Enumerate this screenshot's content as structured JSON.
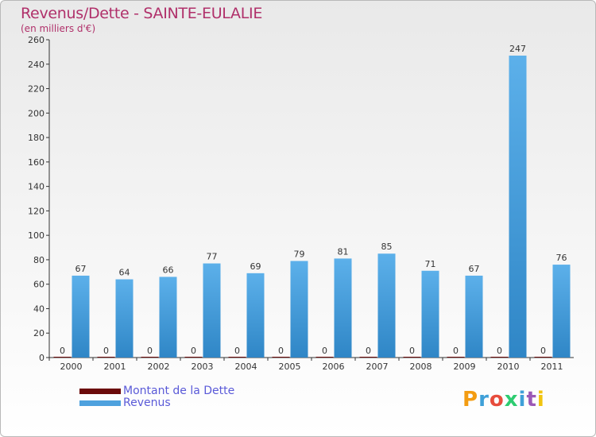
{
  "chart_data": {
    "type": "bar",
    "title": "Revenus/Dette - SAINTE-EULALIE",
    "subtitle": "(en milliers d'€)",
    "categories": [
      "2000",
      "2001",
      "2002",
      "2003",
      "2004",
      "2005",
      "2006",
      "2007",
      "2008",
      "2009",
      "2010",
      "2011"
    ],
    "series": [
      {
        "name": "Montant de la Dette",
        "color": "#6b0a0a",
        "values": [
          0,
          0,
          0,
          0,
          0,
          0,
          0,
          0,
          0,
          0,
          0,
          0
        ]
      },
      {
        "name": "Revenus",
        "color": "#4ea1de",
        "values": [
          67,
          64,
          66,
          77,
          69,
          79,
          81,
          85,
          71,
          67,
          247,
          76
        ]
      }
    ],
    "ylim": [
      0,
      260
    ],
    "yticks": [
      0,
      20,
      40,
      60,
      80,
      100,
      120,
      140,
      160,
      180,
      200,
      220,
      240,
      260
    ],
    "grid": false,
    "legend_position": "bottom-left"
  },
  "legend": {
    "items": [
      {
        "label": "Montant de la Dette",
        "color": "#6b0a0a"
      },
      {
        "label": "Revenus",
        "color": "#4ea1de"
      }
    ]
  },
  "brand": {
    "text": "Proxiti",
    "colors": [
      "#f39c12",
      "#3fa0d8",
      "#e74c3c",
      "#2ecc71",
      "#3fa0d8",
      "#9b59b6",
      "#f1c40f"
    ]
  }
}
